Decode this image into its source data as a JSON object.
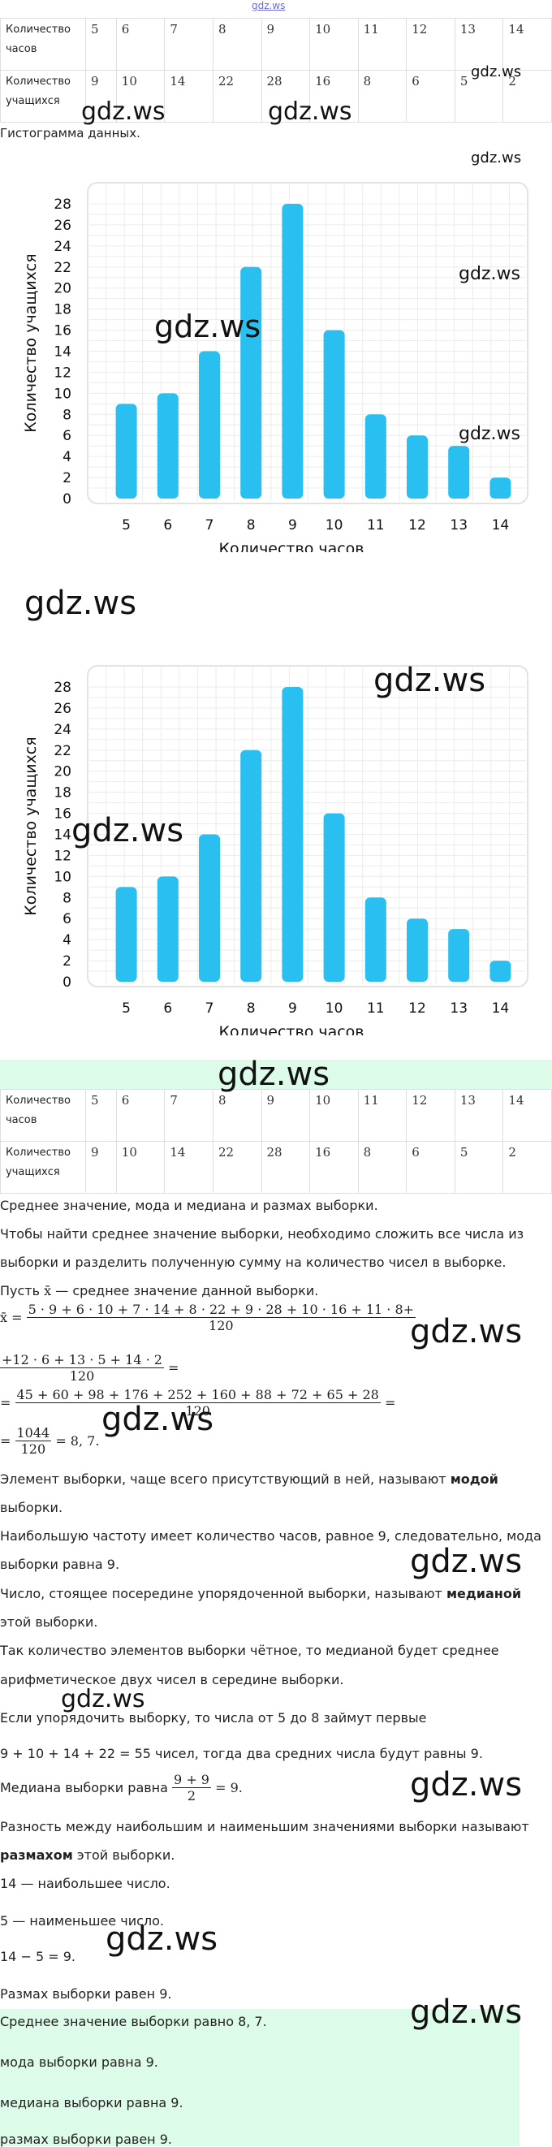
{
  "watermark": "gdz.ws",
  "top_link": "gdz.ws",
  "table": {
    "row_hours_label": "Количество часов",
    "row_students_label": "Количество учащихся",
    "hours": [
      "5",
      "6",
      "7",
      "8",
      "9",
      "10",
      "11",
      "12",
      "13",
      "14"
    ],
    "students": [
      "9",
      "10",
      "14",
      "22",
      "28",
      "16",
      "8",
      "6",
      "5",
      "2"
    ]
  },
  "histogram_caption": "Гистограмма данных.",
  "chart_data": [
    {
      "type": "bar",
      "categories": [
        "5",
        "6",
        "7",
        "8",
        "9",
        "10",
        "11",
        "12",
        "13",
        "14"
      ],
      "values": [
        9,
        10,
        14,
        22,
        28,
        16,
        8,
        6,
        5,
        2
      ],
      "xlabel": "Количество часов",
      "ylabel": "Количество учащихся",
      "ylim": [
        0,
        28
      ],
      "yticks": [
        "0",
        "2",
        "4",
        "6",
        "8",
        "10",
        "12",
        "14",
        "16",
        "18",
        "20",
        "22",
        "24",
        "26",
        "28"
      ],
      "grid": true,
      "color": "#29bff0"
    },
    {
      "type": "bar",
      "categories": [
        "5",
        "6",
        "7",
        "8",
        "9",
        "10",
        "11",
        "12",
        "13",
        "14"
      ],
      "values": [
        9,
        10,
        14,
        22,
        28,
        16,
        8,
        6,
        5,
        2
      ],
      "xlabel": "Количество часов",
      "ylabel": "Количество учащихся",
      "ylim": [
        0,
        28
      ],
      "yticks": [
        "0",
        "2",
        "4",
        "6",
        "8",
        "10",
        "12",
        "14",
        "16",
        "18",
        "20",
        "22",
        "24",
        "26",
        "28"
      ],
      "grid": true,
      "color": "#29bff0"
    }
  ],
  "solution": {
    "heading": "Среднее значение, мода и медиана и размах выборки.",
    "p1a": "Чтобы найти среднее значение выборки, необходимо сложить все числа из",
    "p1b": "выборки и разделить полученную сумму на количество чисел в выборке.",
    "p2_pre": "Пусть",
    "p2_var": "x̄",
    "p2_post": "— среднее значение данной выборки.",
    "eq1_lhs": "x̄ =",
    "eq1_num": "5 · 9 + 6 · 10 + 7 · 14 + 8 · 22 + 9 · 28 + 10 · 16 + 11 · 8+",
    "eq1_den": "120",
    "eq2_num": "+12 · 6 + 13 · 5 + 14 · 2",
    "eq2_den": "120",
    "eq2_eq": "=",
    "eq3_lhs": "=",
    "eq3_num": "45 + 60 + 98 + 176 + 252 + 160 + 88 + 72 + 65 + 28",
    "eq3_den": "120",
    "eq3_eq": "=",
    "eq4_lhs": "=",
    "eq4_num": "1044",
    "eq4_den": "120",
    "eq4_rest": "= 8, 7.",
    "mode_a_pre": "Элемент выборки, чаще всего присутствующий в ней, называют ",
    "mode_a_bold": "модой",
    "mode_b": "выборки.",
    "mode_c": "Наибольшую частоту имеет количество часов, равное 9, следовательно, мода",
    "mode_d": "выборки равна 9.",
    "med_a_pre": "Число, стоящее посередине упорядоченной выборки, называют ",
    "med_a_bold": "медианой",
    "med_b": "этой выборки.",
    "med_c": "Так количество элементов выборки чётное, то медианой будет среднее",
    "med_d": "арифметическое двух чисел в середине выборки.",
    "med_e": "Если упорядочить выборку, то числа от 5 до 8 займут первые",
    "med_f": "9 + 10 + 14 + 22 = 55 чисел, тогда два средних числа будут равны 9.",
    "med_g_pre": "Медиана выборки равна",
    "med_g_num": "9 + 9",
    "med_g_den": "2",
    "med_g_post": "= 9.",
    "range_a": "Разность между наибольшим и наименьшим значениями выборки называют",
    "range_b_bold": "размахом",
    "range_b_post": " этой выборки.",
    "range_c": "14 — наибольшее число.",
    "range_d": "5 — наименьшее число.",
    "range_e": "14 − 5 = 9.",
    "range_f": "Размах выборки равен 9."
  },
  "answer": {
    "l1": "Среднее значение выборки равно 8, 7.",
    "l2": "мода выборки равна 9.",
    "l3": "медиана выборки равна 9.",
    "l4": "размах выборки равен 9."
  }
}
